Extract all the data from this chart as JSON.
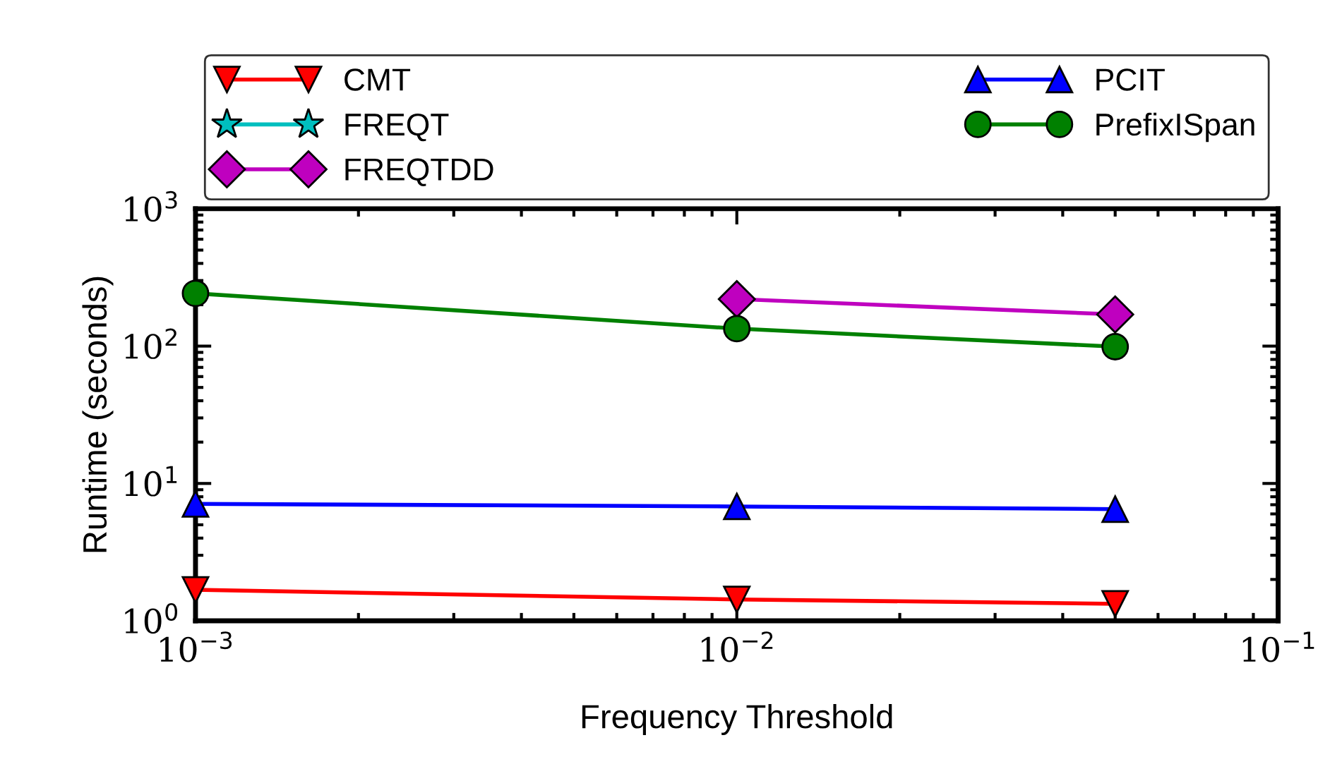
{
  "chart_data": {
    "type": "line",
    "xlabel": "Frequency Threshold",
    "ylabel": "Runtime (seconds)",
    "log": "xy",
    "x": [
      0.001,
      0.01,
      0.05
    ],
    "xlim": [
      0.001,
      0.1
    ],
    "ylim": [
      1,
      1000
    ],
    "xticks": [
      {
        "value": 0.001,
        "label": "10$^{−3}$"
      },
      {
        "value": 0.01,
        "label": "10$^{−2}$"
      },
      {
        "value": 0.1,
        "label": "10$^{−1}$"
      }
    ],
    "yticks": [
      {
        "value": 1,
        "label": "10$^{0}$"
      },
      {
        "value": 10,
        "label": "10$^{1}$"
      },
      {
        "value": 100,
        "label": "10$^{2}$"
      },
      {
        "value": 1000,
        "label": "10$^{3}$"
      }
    ],
    "grid": false,
    "legend": "top",
    "series": [
      {
        "name": "CMT",
        "color": "#ff0000",
        "marker": "triangle_down",
        "values": [
          1.68,
          1.43,
          1.33
        ]
      },
      {
        "name": "FREQT",
        "color": "#00bfbf",
        "marker": "star",
        "values": [
          null,
          null,
          null
        ]
      },
      {
        "name": "FREQTDD",
        "color": "#bf00bf",
        "marker": "diamond",
        "values": [
          null,
          220,
          170
        ]
      },
      {
        "name": "PCIT",
        "color": "#0000ff",
        "marker": "triangle",
        "values": [
          7.1,
          6.8,
          6.5
        ]
      },
      {
        "name": "PrefixISpan",
        "color": "#008000",
        "marker": "circle",
        "values": [
          242,
          134,
          99
        ]
      }
    ]
  }
}
